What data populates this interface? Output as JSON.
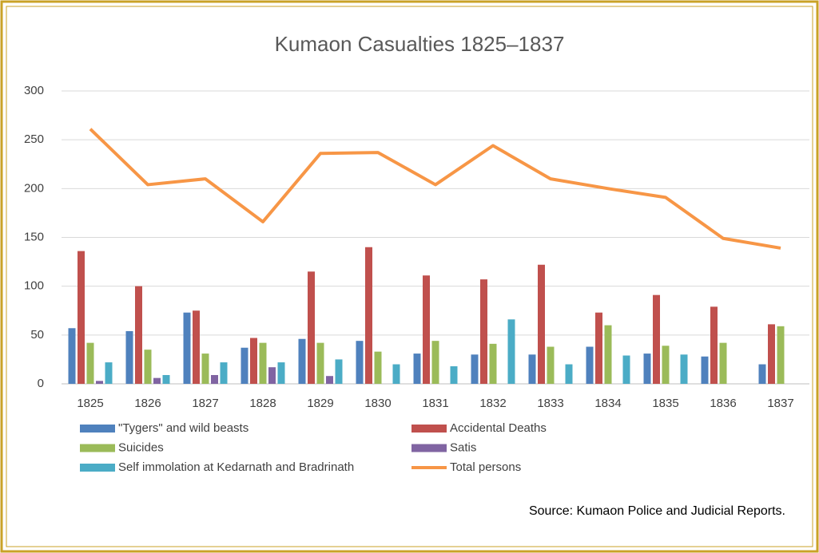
{
  "chart_data": {
    "type": "bar",
    "title": "Kumaon  Casualties 1825–1837",
    "categories": [
      "1825",
      "1826",
      "1827",
      "1828",
      "1829",
      "1830",
      "1831",
      "1832",
      "1833",
      "1834",
      "1835",
      "1836",
      "1837"
    ],
    "series": [
      {
        "name": "\"Tygers\" and wild beasts",
        "color": "#4f81bd",
        "values": [
          57,
          54,
          73,
          37,
          46,
          44,
          31,
          30,
          30,
          38,
          31,
          28,
          20
        ]
      },
      {
        "name": "Accidental Deaths",
        "color": "#c0504d",
        "values": [
          136,
          100,
          75,
          47,
          115,
          140,
          111,
          107,
          122,
          73,
          91,
          79,
          61
        ]
      },
      {
        "name": "Suicides",
        "color": "#9bbb59",
        "values": [
          42,
          35,
          31,
          42,
          42,
          33,
          44,
          41,
          38,
          60,
          39,
          42,
          59
        ]
      },
      {
        "name": "Satis",
        "color": "#8064a2",
        "values": [
          3,
          6,
          9,
          17,
          8,
          null,
          null,
          null,
          null,
          null,
          null,
          null,
          null
        ]
      },
      {
        "name": "Self immolation at Kedarnath and Bradrinath",
        "color": "#4bacc6",
        "values": [
          22,
          9,
          22,
          22,
          25,
          20,
          18,
          66,
          20,
          29,
          30,
          null,
          null
        ]
      },
      {
        "name": "Total persons",
        "color": "#f79646",
        "type": "line",
        "values": [
          261,
          204,
          210,
          166,
          236,
          237,
          204,
          244,
          210,
          200,
          191,
          149,
          139
        ]
      }
    ],
    "ylim": [
      0,
      300
    ],
    "yticks": [
      0,
      50,
      100,
      150,
      200,
      250,
      300
    ],
    "grid": true,
    "source": "Source: Kumaon Police and Judicial Reports."
  }
}
